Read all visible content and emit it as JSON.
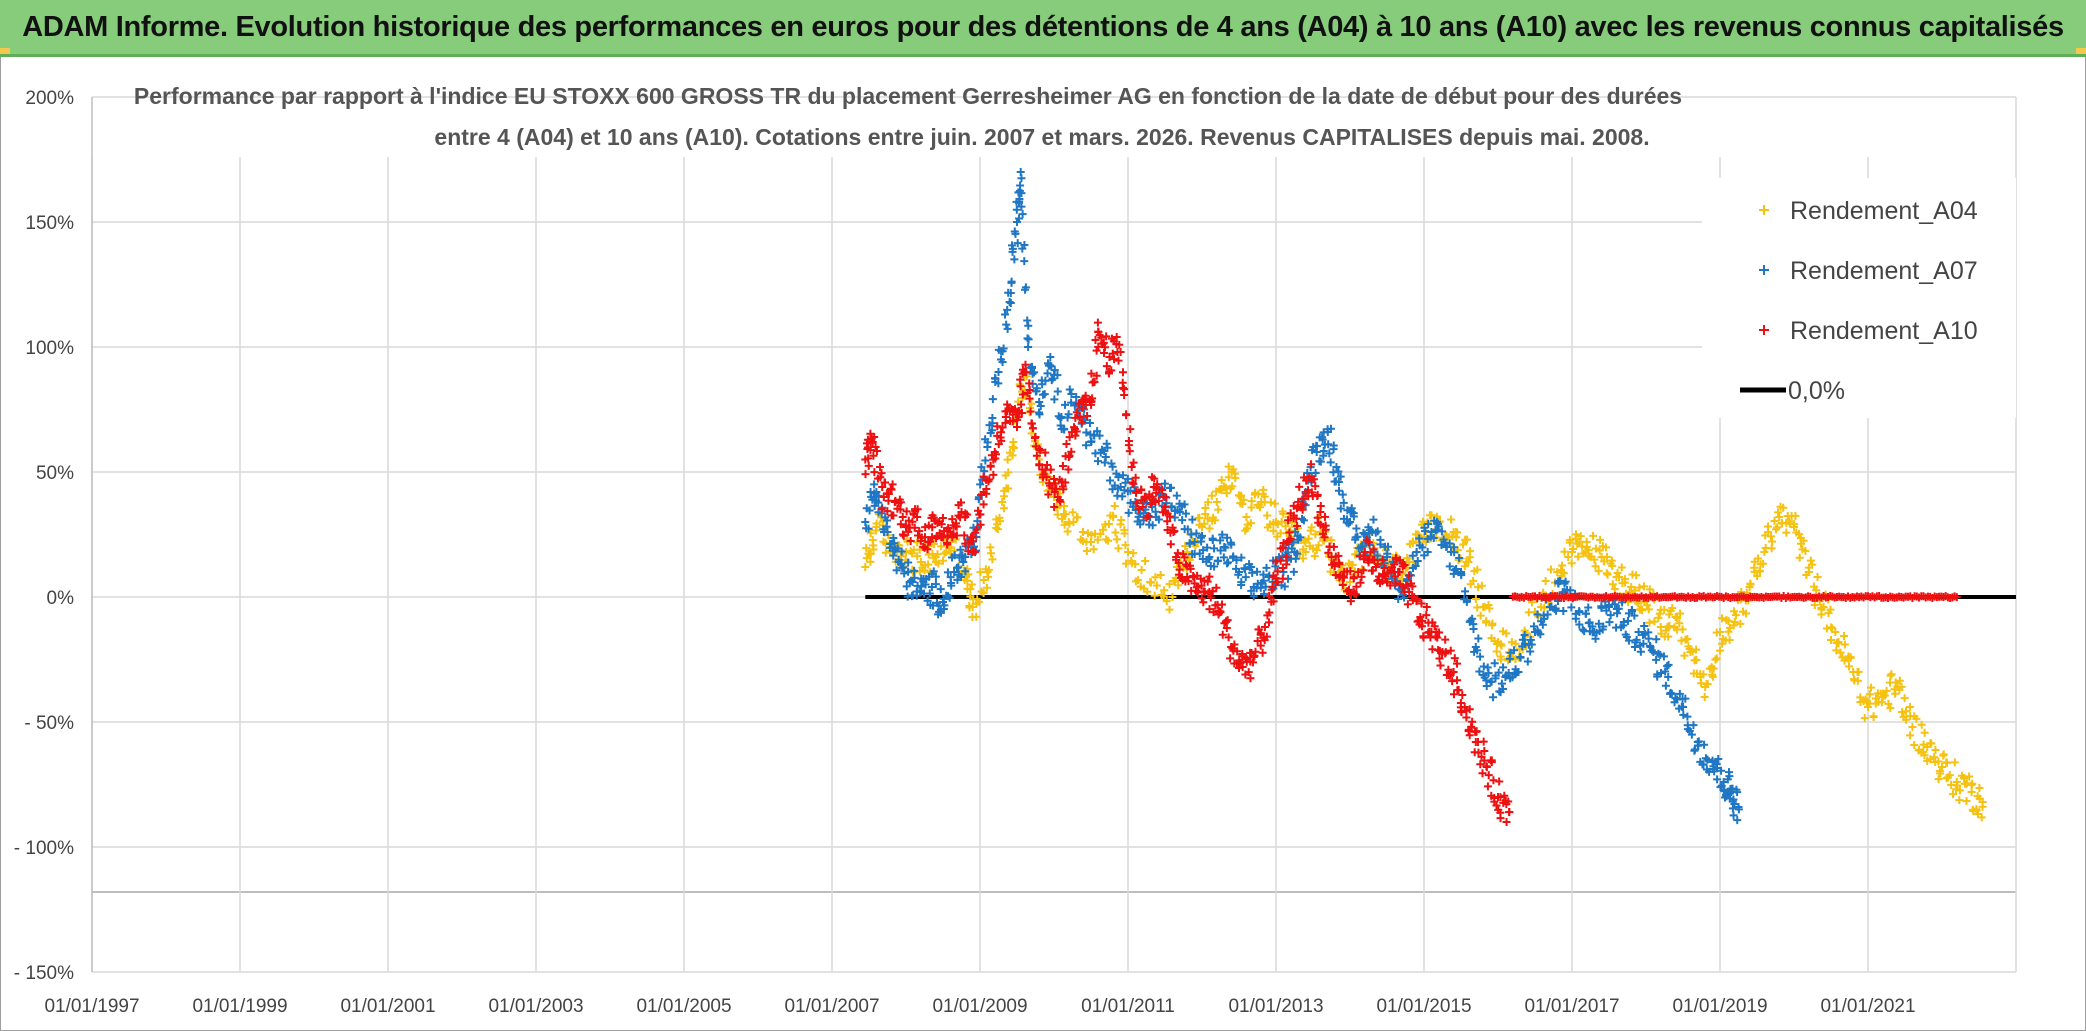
{
  "banner": {
    "title": "ADAM Informe. Evolution historique des performances en euros pour des détentions de 4 ans (A04) à 10 ans (A10) avec les revenus connus capitalisés"
  },
  "colors": {
    "banner_bg": "#86cc7a",
    "a04": "#f5c211",
    "a07": "#1f77c4",
    "a10": "#ee1111",
    "zero": "#000000",
    "grid": "#d9d9d9"
  },
  "chart_data": {
    "type": "scatter",
    "title_lines": [
      "Performance par rapport à l'indice EU STOXX 600 GROSS TR  du placement Gerresheimer AG en fonction de la date de début pour des durées",
      "entre 4 (A04) et 10 ans (A10). Cotations entre juin. 2007 et mars. 2026. Revenus CAPITALISES depuis mai. 2008."
    ],
    "xlim": [
      1997.0,
      2023.0
    ],
    "ylim": [
      -150,
      200
    ],
    "x_ticks": [
      {
        "value": 1997,
        "label": "01/01/1997"
      },
      {
        "value": 1999,
        "label": "01/01/1999"
      },
      {
        "value": 2001,
        "label": "01/01/2001"
      },
      {
        "value": 2003,
        "label": "01/01/2003"
      },
      {
        "value": 2005,
        "label": "01/01/2005"
      },
      {
        "value": 2007,
        "label": "01/01/2007"
      },
      {
        "value": 2009,
        "label": "01/01/2009"
      },
      {
        "value": 2011,
        "label": "01/01/2011"
      },
      {
        "value": 2013,
        "label": "01/01/2013"
      },
      {
        "value": 2015,
        "label": "01/01/2015"
      },
      {
        "value": 2017,
        "label": "01/01/2017"
      },
      {
        "value": 2019,
        "label": "01/01/2019"
      },
      {
        "value": 2021,
        "label": "01/01/2021"
      }
    ],
    "y_ticks": [
      {
        "value": 200,
        "label": "200%"
      },
      {
        "value": 150,
        "label": "150%"
      },
      {
        "value": 100,
        "label": "100%"
      },
      {
        "value": 50,
        "label": "50%"
      },
      {
        "value": 0,
        "label": "0%"
      },
      {
        "value": -50,
        "label": "- 50%"
      },
      {
        "value": -100,
        "label": "- 100%"
      },
      {
        "value": -150,
        "label": "- 150%"
      }
    ],
    "legend": {
      "position": "top-right",
      "entries": [
        {
          "label": "Rendement_A04",
          "series": "a04",
          "marker": "+"
        },
        {
          "label": "Rendement_A07",
          "series": "a07",
          "marker": "+"
        },
        {
          "label": "Rendement_A10",
          "series": "a10",
          "marker": "+"
        },
        {
          "label": "0,0%",
          "series": "zero",
          "marker": "line"
        }
      ]
    },
    "series": [
      {
        "key": "a04",
        "name": "Rendement_A04",
        "color": "#f5c211",
        "x": [
          2007.45,
          2007.6,
          2007.8,
          2008.0,
          2008.2,
          2008.4,
          2008.6,
          2008.8,
          2008.9,
          2009.1,
          2009.3,
          2009.45,
          2009.6,
          2009.8,
          2010.0,
          2010.2,
          2010.5,
          2010.8,
          2011.0,
          2011.3,
          2011.6,
          2011.8,
          2012.0,
          2012.2,
          2012.4,
          2012.6,
          2012.8,
          2013.0,
          2013.2,
          2013.4,
          2013.6,
          2013.8,
          2014.0,
          2014.2,
          2014.4,
          2014.6,
          2014.8,
          2015.0,
          2015.2,
          2015.4,
          2015.6,
          2015.8,
          2016.0,
          2016.2,
          2016.5,
          2016.8,
          2017.0,
          2017.2,
          2017.4,
          2017.6,
          2017.8,
          2018.0,
          2018.2,
          2018.4,
          2018.6,
          2018.8,
          2019.0,
          2019.2,
          2019.4,
          2019.6,
          2019.8,
          2020.0,
          2020.2,
          2020.4,
          2020.6,
          2020.8,
          2021.0,
          2021.2,
          2021.4,
          2021.6,
          2021.8,
          2022.0,
          2022.2,
          2022.4,
          2022.55
        ],
        "y": [
          12,
          28,
          20,
          18,
          14,
          16,
          22,
          8,
          -4,
          10,
          38,
          62,
          88,
          55,
          40,
          30,
          22,
          32,
          18,
          6,
          0,
          18,
          28,
          38,
          50,
          32,
          38,
          30,
          24,
          18,
          26,
          14,
          6,
          20,
          16,
          10,
          14,
          24,
          30,
          26,
          14,
          -4,
          -18,
          -24,
          -6,
          10,
          18,
          20,
          16,
          8,
          4,
          0,
          -12,
          -8,
          -22,
          -36,
          -14,
          -10,
          4,
          18,
          32,
          28,
          10,
          -4,
          -18,
          -30,
          -44,
          -40,
          -36,
          -52,
          -60,
          -68,
          -74,
          -78,
          -82
        ]
      },
      {
        "key": "a07",
        "name": "Rendement_A07",
        "color": "#1f77c4",
        "x": [
          2007.45,
          2007.6,
          2007.75,
          2007.9,
          2008.05,
          2008.2,
          2008.35,
          2008.5,
          2008.65,
          2008.8,
          2008.95,
          2009.1,
          2009.25,
          2009.4,
          2009.5,
          2009.55,
          2009.65,
          2009.8,
          2009.95,
          2010.1,
          2010.3,
          2010.5,
          2010.7,
          2010.9,
          2011.1,
          2011.3,
          2011.5,
          2011.7,
          2011.9,
          2012.1,
          2012.3,
          2012.5,
          2012.7,
          2012.9,
          2013.1,
          2013.25,
          2013.4,
          2013.55,
          2013.7,
          2013.85,
          2014.0,
          2014.15,
          2014.3,
          2014.5,
          2014.7,
          2014.9,
          2015.1,
          2015.3,
          2015.5,
          2015.7,
          2015.9,
          2016.1,
          2016.3,
          2016.5,
          2016.7,
          2016.9,
          2017.1,
          2017.3,
          2017.5,
          2017.7,
          2017.9,
          2018.1,
          2018.3,
          2018.5,
          2018.7,
          2018.9,
          2019.05,
          2019.15,
          2019.25
        ],
        "y": [
          30,
          42,
          26,
          14,
          6,
          2,
          4,
          -2,
          10,
          16,
          24,
          60,
          90,
          118,
          150,
          170,
          100,
          78,
          96,
          72,
          80,
          62,
          56,
          44,
          38,
          32,
          40,
          34,
          22,
          16,
          20,
          10,
          4,
          8,
          10,
          18,
          42,
          58,
          66,
          46,
          30,
          20,
          26,
          16,
          4,
          18,
          26,
          20,
          10,
          -20,
          -34,
          -32,
          -24,
          -14,
          -4,
          2,
          -6,
          -14,
          -4,
          -10,
          -14,
          -22,
          -32,
          -44,
          -58,
          -66,
          -74,
          -78,
          -84
        ]
      },
      {
        "key": "a10",
        "name": "Rendement_A10",
        "color": "#ee1111",
        "x": [
          2007.45,
          2007.55,
          2007.7,
          2007.85,
          2008.0,
          2008.15,
          2008.3,
          2008.45,
          2008.6,
          2008.75,
          2008.9,
          2009.05,
          2009.2,
          2009.35,
          2009.5,
          2009.6,
          2009.75,
          2009.9,
          2010.05,
          2010.2,
          2010.35,
          2010.5,
          2010.6,
          2010.75,
          2010.9,
          2011.05,
          2011.2,
          2011.35,
          2011.5,
          2011.65,
          2011.8,
          2011.95,
          2012.1,
          2012.25,
          2012.4,
          2012.55,
          2012.7,
          2012.85,
          2013.0,
          2013.15,
          2013.3,
          2013.45,
          2013.6,
          2013.75,
          2013.9,
          2014.05,
          2014.2,
          2014.35,
          2014.5,
          2014.65,
          2014.8,
          2014.95,
          2015.1,
          2015.25,
          2015.4,
          2015.55,
          2015.7,
          2015.85,
          2016.0,
          2016.15
        ],
        "y": [
          55,
          62,
          40,
          38,
          28,
          32,
          22,
          30,
          26,
          34,
          18,
          42,
          58,
          72,
          68,
          90,
          64,
          48,
          40,
          56,
          72,
          78,
          106,
          96,
          98,
          52,
          36,
          44,
          36,
          16,
          8,
          4,
          2,
          -6,
          -20,
          -28,
          -24,
          -12,
          6,
          22,
          36,
          48,
          34,
          16,
          8,
          2,
          18,
          12,
          6,
          10,
          2,
          -8,
          -14,
          -22,
          -30,
          -44,
          -58,
          -68,
          -80,
          -86
        ]
      },
      {
        "key": "a10_zero",
        "name": "Rendement_A10 (0%)",
        "color": "#ee1111",
        "x_range": [
          2016.2,
          2022.2
        ],
        "value": 0
      },
      {
        "key": "zero",
        "name": "0,0%",
        "color": "#000000",
        "type": "line",
        "x_range": [
          2007.45,
          2023.0
        ],
        "value": 0
      }
    ]
  }
}
